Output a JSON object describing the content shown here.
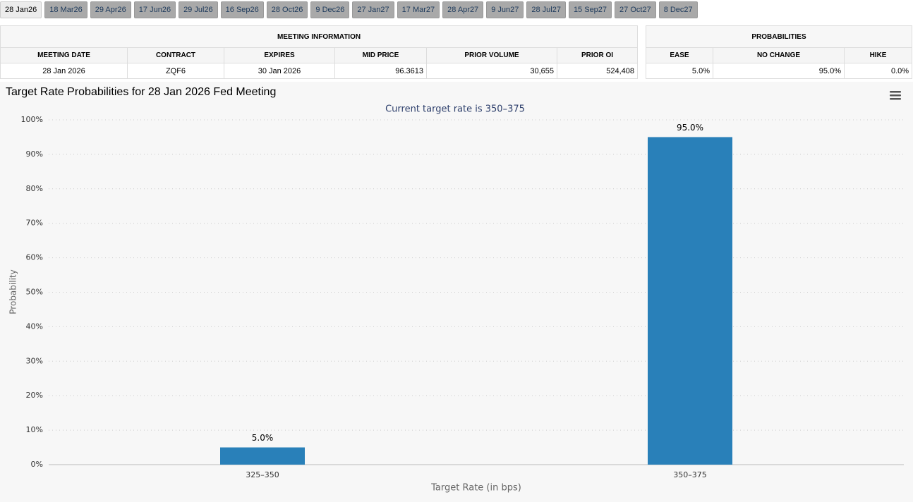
{
  "tabs": [
    "28 Jan26",
    "18 Mar26",
    "29 Apr26",
    "17 Jun26",
    "29 Jul26",
    "16 Sep26",
    "28 Oct26",
    "9 Dec26",
    "27 Jan27",
    "17 Mar27",
    "28 Apr27",
    "9 Jun27",
    "28 Jul27",
    "15 Sep27",
    "27 Oct27",
    "8 Dec27"
  ],
  "meeting_info": {
    "title": "MEETING INFORMATION",
    "headers": [
      "MEETING DATE",
      "CONTRACT",
      "EXPIRES",
      "MID PRICE",
      "PRIOR VOLUME",
      "PRIOR OI"
    ],
    "rows": [
      [
        "28 Jan 2026",
        "ZQF6",
        "30 Jan 2026",
        "96.3613",
        "30,655",
        "524,408"
      ]
    ]
  },
  "probabilities": {
    "title": "PROBABILITIES",
    "headers": [
      "EASE",
      "NO CHANGE",
      "HIKE"
    ],
    "rows": [
      [
        "5.0%",
        "95.0%",
        "0.0%"
      ]
    ]
  },
  "chart_data": {
    "type": "bar",
    "title": "Target Rate Probabilities for 28 Jan 2026 Fed Meeting",
    "subtitle": "Current target rate is 350–375",
    "x_label": "Target Rate (in bps)",
    "y_label": "Probability",
    "categories": [
      "325–350",
      "350–375"
    ],
    "values": [
      5.0,
      95.0
    ],
    "value_labels": [
      "5.0%",
      "95.0%"
    ],
    "color": "#2980b9",
    "ylim": [
      0,
      100
    ],
    "yticks": [
      {
        "value": 0,
        "label": "0%"
      },
      {
        "value": 10,
        "label": "10%"
      },
      {
        "value": 20,
        "label": "20%"
      },
      {
        "value": 30,
        "label": "30%"
      },
      {
        "value": 40,
        "label": "40%"
      },
      {
        "value": 50,
        "label": "50%"
      },
      {
        "value": 60,
        "label": "60%"
      },
      {
        "value": 70,
        "label": "70%"
      },
      {
        "value": 80,
        "label": "80%"
      },
      {
        "value": 90,
        "label": "90%"
      },
      {
        "value": 100,
        "label": "100%"
      }
    ],
    "grid": true
  }
}
